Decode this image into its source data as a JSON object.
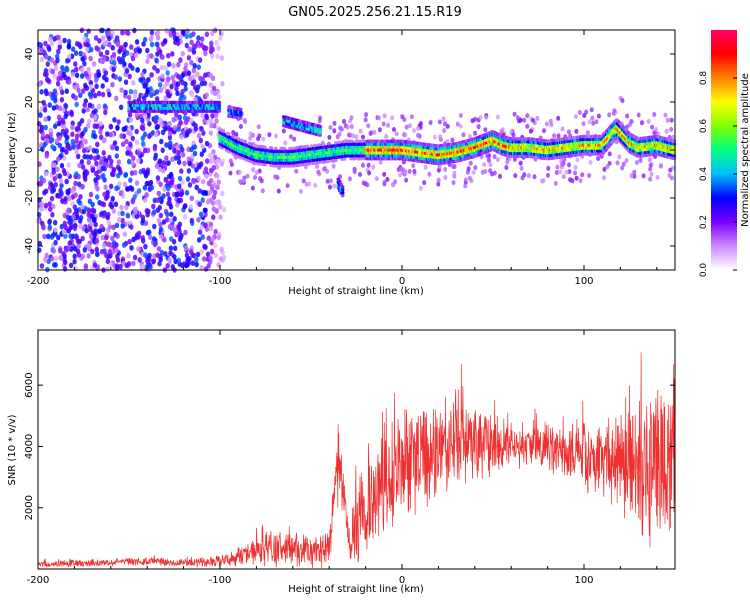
{
  "figure": {
    "title": "GN05.2025.256.21.15.R19"
  },
  "chart_data": [
    {
      "type": "heatmap",
      "xlabel": "Height of straight line (km)",
      "ylabel": "Frequency (Hz)",
      "xlim": [
        -200,
        150
      ],
      "ylim": [
        -50,
        50
      ],
      "x_ticks": [
        -200,
        -100,
        0,
        100
      ],
      "y_ticks": [
        -40,
        -20,
        0,
        20,
        40
      ],
      "colorbar": {
        "label": "Normalized spectral amplitude",
        "range": [
          0,
          1
        ],
        "ticks": [
          0.0,
          0.2,
          0.4,
          0.6,
          0.8
        ],
        "tick_labels": [
          "0.0",
          "0.2",
          "0.4",
          "0.6",
          "0.8"
        ],
        "colors": [
          "#ffffff",
          "#cc88ff",
          "#7a00ff",
          "#0000ff",
          "#00bfff",
          "#00ff80",
          "#80ff00",
          "#ffff00",
          "#ff8000",
          "#ff0000",
          "#ff0060"
        ]
      },
      "ridge": {
        "x": [
          -100,
          -90,
          -80,
          -70,
          -60,
          -50,
          -40,
          -30,
          -20,
          -10,
          0,
          10,
          20,
          30,
          40,
          50,
          55,
          60,
          70,
          80,
          90,
          100,
          110,
          118,
          125,
          130,
          140,
          150
        ],
        "y": [
          5,
          1,
          -2,
          -3,
          -3,
          -2,
          -1,
          0,
          0,
          0,
          0,
          -1,
          -2,
          -1,
          1,
          4,
          2,
          1,
          1,
          0,
          1,
          2,
          2,
          9,
          3,
          1,
          2,
          0
        ],
        "peak_amplitude": 1.0
      },
      "secondary_features": [
        {
          "x": [
            -150,
            -100
          ],
          "y": [
            18,
            18
          ],
          "amplitude": 0.45
        },
        {
          "x": [
            -95,
            -88
          ],
          "y": [
            16,
            15
          ],
          "amplitude": 0.4
        },
        {
          "x": [
            -65,
            -45
          ],
          "y": [
            12,
            8
          ],
          "amplitude": 0.45
        },
        {
          "x": [
            -35,
            -32
          ],
          "y": [
            -14,
            -18
          ],
          "amplitude": 0.45
        }
      ],
      "background_noise": {
        "x_range": [
          -200,
          -95
        ],
        "amplitude": 0.3
      }
    },
    {
      "type": "line",
      "xlabel": "Height of straight line (km)",
      "ylabel": "SNR (10 * v/v)",
      "xlim": [
        -200,
        150
      ],
      "ylim": [
        0,
        7800
      ],
      "x_ticks": [
        -200,
        -100,
        0,
        100
      ],
      "y_ticks": [
        2000,
        4000,
        6000
      ],
      "color": "#ee3030",
      "envelope": {
        "x": [
          -200,
          -180,
          -160,
          -140,
          -120,
          -100,
          -90,
          -80,
          -70,
          -60,
          -50,
          -40,
          -35,
          -30,
          -28,
          -25,
          -20,
          -10,
          0,
          10,
          20,
          30,
          40,
          50,
          60,
          70,
          80,
          90,
          100,
          110,
          120,
          130,
          140,
          150
        ],
        "mean": [
          150,
          180,
          200,
          250,
          200,
          250,
          400,
          600,
          700,
          600,
          600,
          700,
          3500,
          1500,
          500,
          1500,
          2000,
          2700,
          3200,
          3600,
          3800,
          4200,
          4300,
          4000,
          4100,
          4100,
          4000,
          3800,
          3700,
          3600,
          3500,
          3400,
          3500,
          3500
        ],
        "spread": [
          80,
          100,
          100,
          120,
          120,
          150,
          250,
          400,
          500,
          450,
          450,
          500,
          1000,
          600,
          300,
          1200,
          1400,
          1500,
          1600,
          1500,
          1500,
          1400,
          1100,
          800,
          600,
          600,
          700,
          800,
          900,
          1000,
          1500,
          1800,
          2200,
          2500
        ]
      }
    }
  ]
}
